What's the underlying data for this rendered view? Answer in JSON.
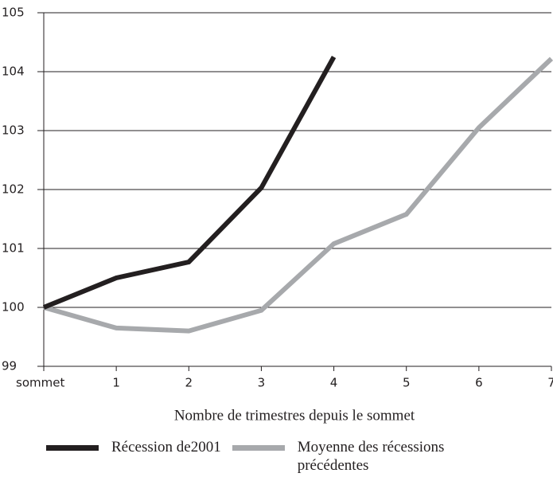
{
  "chart_data": {
    "type": "line",
    "x_label": "Nombre de trimestres depuis le sommet",
    "x": [
      0,
      1,
      2,
      3,
      4,
      5,
      6,
      7
    ],
    "xlim": [
      0,
      7
    ],
    "xticks": [
      {
        "value": 0,
        "label": "sommet"
      },
      1,
      2,
      3,
      4,
      5,
      6,
      7
    ],
    "ylim": [
      99,
      105
    ],
    "yticks": [
      99,
      100,
      101,
      102,
      103,
      104,
      105
    ],
    "grid": true,
    "series": [
      {
        "name": "Récession  de2001",
        "color": "#231f20",
        "values": [
          100,
          100.5,
          100.77,
          102.03,
          104.25,
          null,
          null,
          null
        ]
      },
      {
        "name": "Moyenne des récessions précédentes",
        "color": "#a7a9ac",
        "values": [
          100,
          99.65,
          99.6,
          99.95,
          101.08,
          101.58,
          103.05,
          104.22
        ]
      }
    ]
  }
}
